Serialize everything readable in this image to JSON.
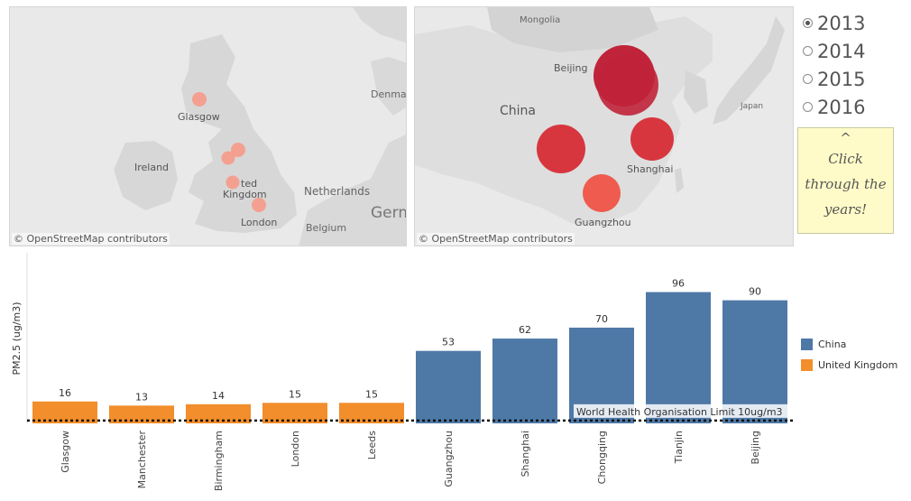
{
  "maps": {
    "uk": {
      "attribution": "© OpenStreetMap contributors",
      "labels": {
        "glasgow": "Glasgow",
        "ireland": "Ireland",
        "united_kingdom_part": "ted",
        "kingdom": "Kingdom",
        "london": "London",
        "netherlands": "Netherlands",
        "belgium": "Belgium",
        "denmark": "Denmar",
        "germany": "Germ"
      }
    },
    "cn": {
      "attribution": "© OpenStreetMap contributors",
      "labels": {
        "mongolia": "Mongolia",
        "beijing": "Beijing",
        "china": "China",
        "japan": "Japan",
        "shanghai": "Shanghai",
        "guangzhou": "Guangzhou"
      }
    }
  },
  "year_selector": {
    "options": [
      "2013",
      "2014",
      "2015",
      "2016"
    ],
    "selected": "2013"
  },
  "note": {
    "caret": "^",
    "line1": "Click",
    "line2": "through the",
    "line3": "years!"
  },
  "colors": {
    "china": "#4e79a7",
    "uk": "#f28e2b",
    "bubble_dark": "#c0243a",
    "bubble_mid": "#d8363f",
    "bubble_light": "#ef5b4e",
    "bubble_uk": "#f4a091"
  },
  "chart_data": {
    "type": "bar",
    "ylabel": "PM2.5 (ug/m3)",
    "categories": [
      "Glasgow",
      "Manchester",
      "Birmingham",
      "London",
      "Leeds",
      "Guangzhou",
      "Shanghai",
      "Chongqing",
      "Tianjin",
      "Beijing"
    ],
    "values": [
      16,
      13,
      14,
      15,
      15,
      53,
      62,
      70,
      96,
      90
    ],
    "country": [
      "United Kingdom",
      "United Kingdom",
      "United Kingdom",
      "United Kingdom",
      "United Kingdom",
      "China",
      "China",
      "China",
      "China",
      "China"
    ],
    "legend": [
      "China",
      "United Kingdom"
    ],
    "reference_line": {
      "value": 10,
      "label": "World Health Organisation Limit 10ug/m3"
    },
    "ylim": [
      0,
      100
    ]
  }
}
